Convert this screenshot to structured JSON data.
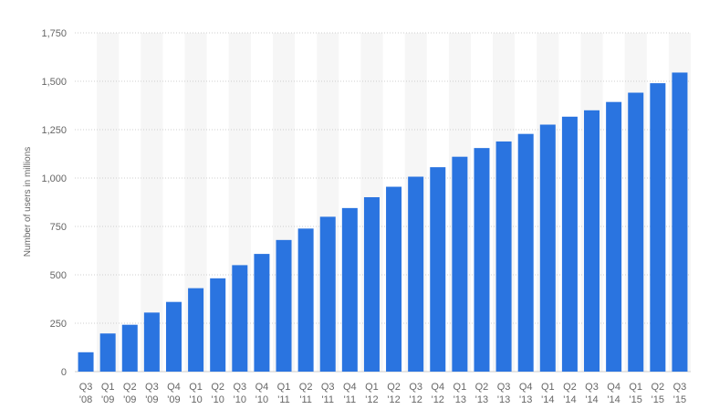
{
  "chart_data": {
    "type": "bar",
    "ylabel": "Number of users in millions",
    "xlabel": "",
    "title": "",
    "ylim": [
      0,
      1750
    ],
    "yticks": [
      0,
      250,
      500,
      750,
      1000,
      1250,
      1500,
      1750
    ],
    "ytick_labels": [
      "0",
      "250",
      "500",
      "750",
      "1,000",
      "1,250",
      "1,500",
      "1,750"
    ],
    "grid": true,
    "bar_color": "#2a74e0",
    "band_color": "#f6f6f6",
    "categories": [
      [
        "Q3",
        "'08"
      ],
      [
        "Q1",
        "'09"
      ],
      [
        "Q2",
        "'09"
      ],
      [
        "Q3",
        "'09"
      ],
      [
        "Q4",
        "'09"
      ],
      [
        "Q1",
        "'10"
      ],
      [
        "Q2",
        "'10"
      ],
      [
        "Q3",
        "'10"
      ],
      [
        "Q4",
        "'10"
      ],
      [
        "Q1",
        "'11"
      ],
      [
        "Q2",
        "'11"
      ],
      [
        "Q3",
        "'11"
      ],
      [
        "Q4",
        "'11"
      ],
      [
        "Q1",
        "'12"
      ],
      [
        "Q2",
        "'12"
      ],
      [
        "Q3",
        "'12"
      ],
      [
        "Q4",
        "'12"
      ],
      [
        "Q1",
        "'13"
      ],
      [
        "Q2",
        "'13"
      ],
      [
        "Q3",
        "'13"
      ],
      [
        "Q4",
        "'13"
      ],
      [
        "Q1",
        "'14"
      ],
      [
        "Q2",
        "'14"
      ],
      [
        "Q3",
        "'14"
      ],
      [
        "Q4",
        "'14"
      ],
      [
        "Q1",
        "'15"
      ],
      [
        "Q2",
        "'15"
      ],
      [
        "Q3",
        "'15"
      ]
    ],
    "values": [
      100,
      197,
      242,
      305,
      360,
      431,
      482,
      550,
      608,
      680,
      739,
      800,
      845,
      901,
      955,
      1007,
      1056,
      1110,
      1155,
      1189,
      1228,
      1276,
      1317,
      1350,
      1393,
      1441,
      1490,
      1545
    ]
  }
}
